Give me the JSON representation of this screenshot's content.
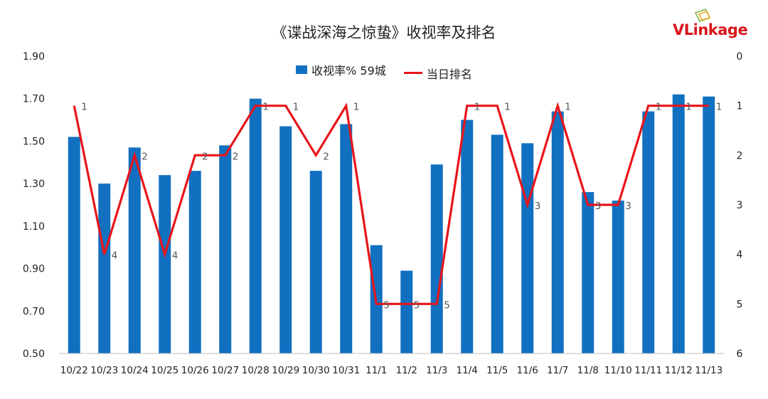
{
  "title": "《谍战深海之惊蛰》收视率及排名",
  "logo": {
    "text": "VLinkage",
    "color": "#d9141b"
  },
  "legend": {
    "bar_label": "收视率% 59城",
    "line_label": "当日排名"
  },
  "colors": {
    "bar": "#1170c0",
    "line": "#e8151b"
  },
  "chart_data": {
    "type": "bar",
    "categories": [
      "10/22",
      "10/23",
      "10/24",
      "10/25",
      "10/26",
      "10/27",
      "10/28",
      "10/29",
      "10/30",
      "10/31",
      "11/1",
      "11/2",
      "11/3",
      "11/4",
      "11/5",
      "11/6",
      "11/7",
      "11/8",
      "11/10",
      "11/11",
      "11/12",
      "11/13"
    ],
    "series": [
      {
        "name": "收视率% 59城",
        "type": "bar",
        "axis": "left",
        "values": [
          1.52,
          1.3,
          1.47,
          1.34,
          1.36,
          1.48,
          1.7,
          1.57,
          1.36,
          1.58,
          1.01,
          0.89,
          1.39,
          1.6,
          1.53,
          1.49,
          1.64,
          1.26,
          1.22,
          1.64,
          1.72,
          1.71
        ]
      },
      {
        "name": "当日排名",
        "type": "line",
        "axis": "right",
        "values": [
          1,
          4,
          2,
          4,
          2,
          2,
          1,
          1,
          2,
          1,
          5,
          5,
          5,
          1,
          1,
          3,
          1,
          3,
          3,
          1,
          1,
          1
        ]
      }
    ],
    "y_left": {
      "ticks": [
        "0.50",
        "0.70",
        "0.90",
        "1.10",
        "1.30",
        "1.50",
        "1.70",
        "1.90"
      ],
      "ylim": [
        0.5,
        1.9
      ]
    },
    "y_right": {
      "ticks": [
        "0",
        "1",
        "2",
        "3",
        "4",
        "5",
        "6"
      ],
      "ylim": [
        0,
        6
      ],
      "reversed": true
    },
    "grid": false,
    "legend_position": "top-center"
  }
}
